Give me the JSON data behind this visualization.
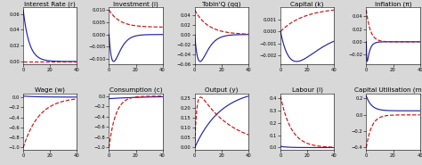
{
  "titles_row1": [
    "Interest Rate (r)",
    "Investment (i)",
    "Tobin'Q (qq)",
    "Capital (k)",
    "Inflation (π)"
  ],
  "titles_row2": [
    "Wage (w)",
    "Consumption (c)",
    "Output (y)",
    "Labour (l)",
    "Capital Utilisation (mpk)"
  ],
  "color_blue": "#2222aa",
  "color_red": "#cc1111",
  "bg_color": "#d8d8d8",
  "axes_bg": "#ffffff",
  "title_fontsize": 5.2,
  "tick_fontsize": 3.8,
  "linewidth": 0.85,
  "n_points": 300
}
